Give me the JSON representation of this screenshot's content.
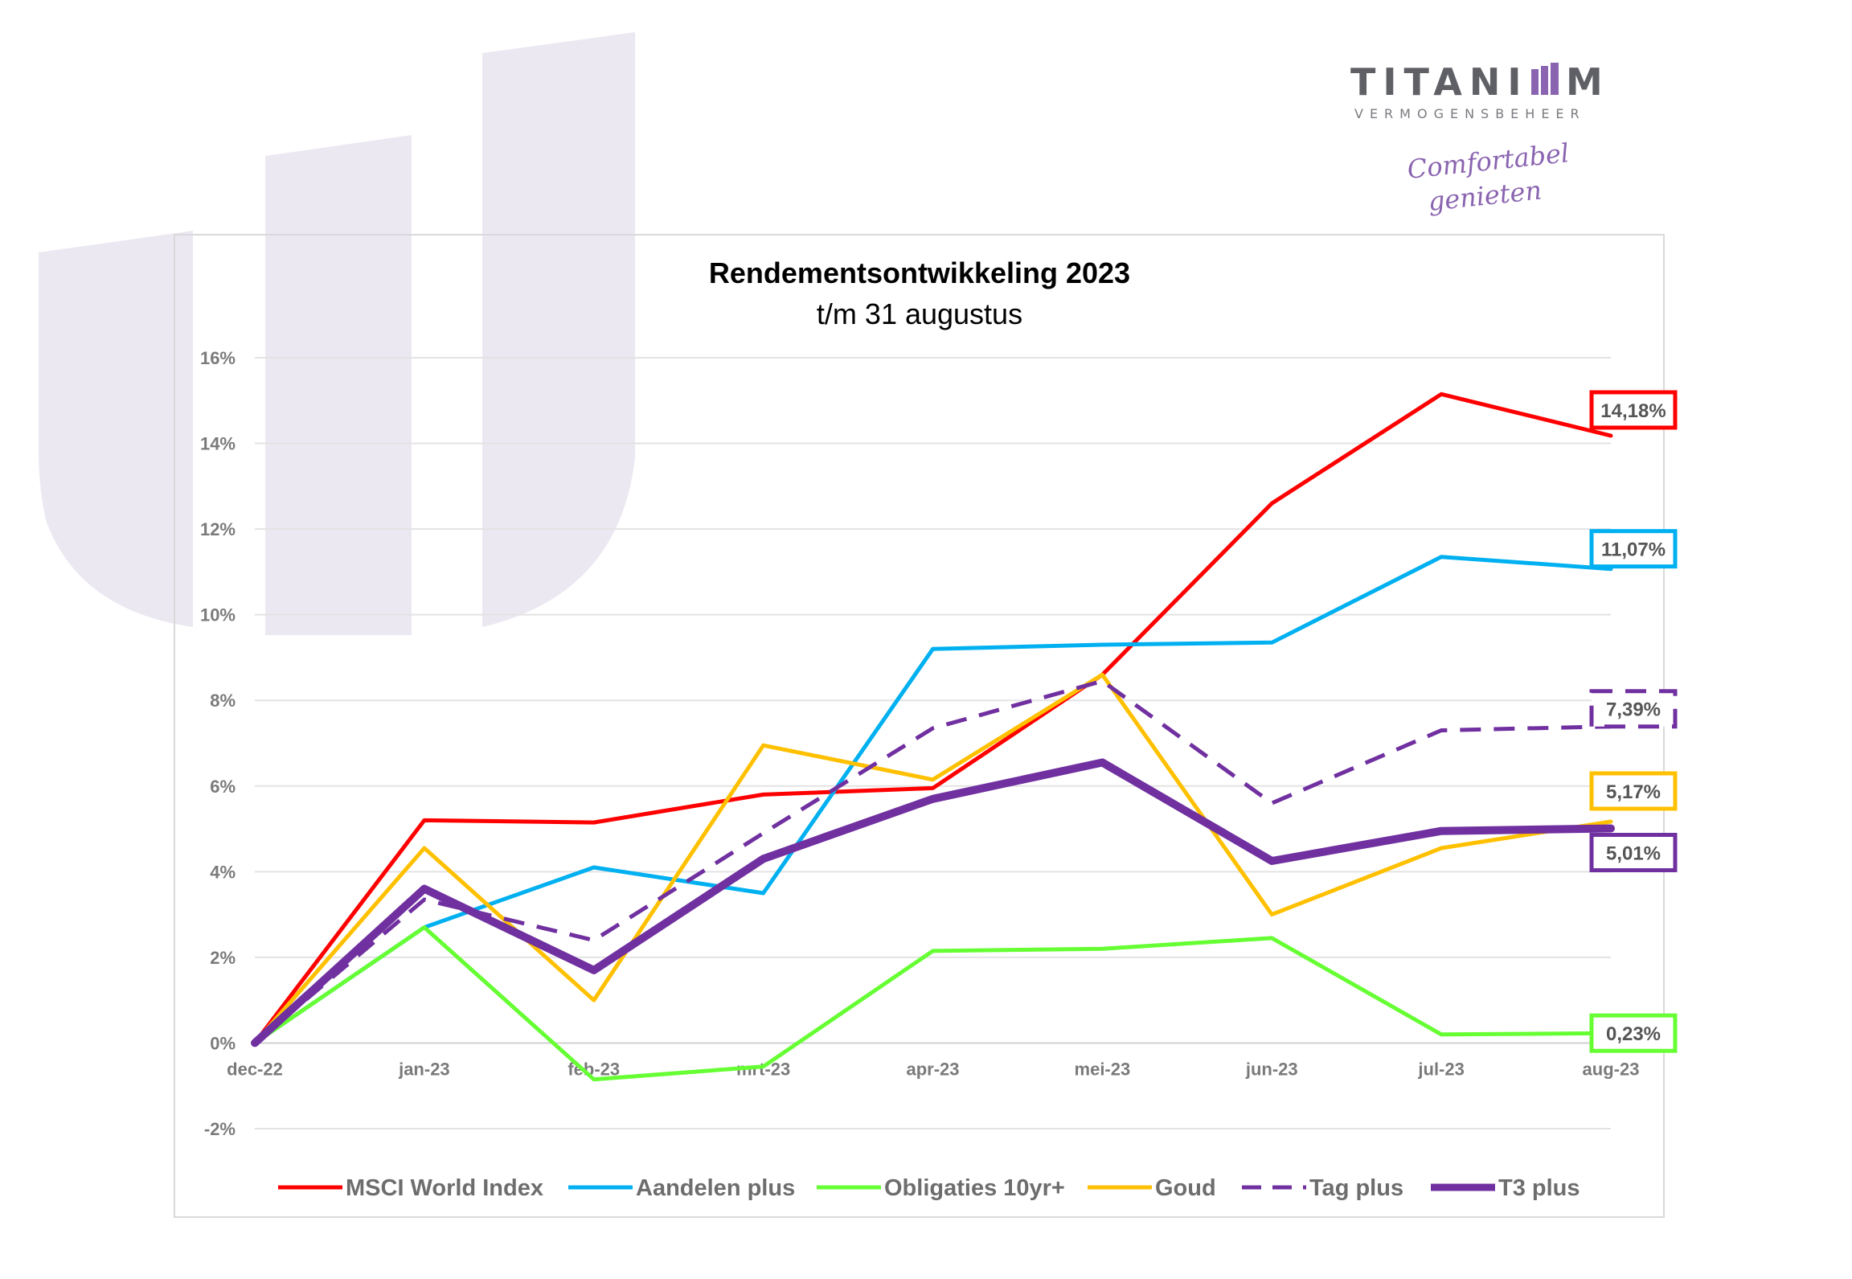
{
  "brand": {
    "name": "TITANIUM",
    "name_part1": "TITANI",
    "name_part2": "M",
    "subtitle": "VERMOGENSBEHEER",
    "slogan_line1": "Comfortabel",
    "slogan_line2": "genieten",
    "accent_color": "#8a64b0",
    "watermark_color": "#ece8f2"
  },
  "chart_data": {
    "type": "line",
    "title": "Rendementsontwikkeling 2023",
    "subtitle": "t/m 31 augustus",
    "categories": [
      "dec-22",
      "jan-23",
      "feb-23",
      "mrt-23",
      "apr-23",
      "mei-23",
      "jun-23",
      "jul-23",
      "aug-23"
    ],
    "y_ticks": [
      -2,
      0,
      2,
      4,
      6,
      8,
      10,
      12,
      14,
      16
    ],
    "y_tick_labels": [
      "-2%",
      "0%",
      "2%",
      "4%",
      "6%",
      "8%",
      "10%",
      "12%",
      "14%",
      "16%"
    ],
    "ylim": [
      -2,
      16
    ],
    "grid": true,
    "legend_position": "bottom",
    "series": [
      {
        "name": "MSCI World Index",
        "color": "#ff0000",
        "style": "solid",
        "width": 5,
        "values": [
          0,
          5.2,
          5.15,
          5.8,
          5.95,
          8.6,
          12.6,
          15.15,
          14.18
        ],
        "end_label": "14,18%"
      },
      {
        "name": "Aandelen plus",
        "color": "#00b0f0",
        "style": "solid",
        "width": 5,
        "values": [
          0,
          2.7,
          4.1,
          3.5,
          9.2,
          9.3,
          9.35,
          11.35,
          11.07
        ],
        "end_label": "11,07%"
      },
      {
        "name": "Obligaties 10yr+",
        "color": "#66ff33",
        "style": "solid",
        "width": 5,
        "values": [
          0,
          2.7,
          -0.85,
          -0.55,
          2.15,
          2.2,
          2.45,
          0.2,
          0.23
        ],
        "end_label": "0,23%"
      },
      {
        "name": "Goud",
        "color": "#ffc000",
        "style": "solid",
        "width": 5,
        "values": [
          0,
          4.55,
          1.0,
          6.95,
          6.15,
          8.6,
          3.0,
          4.55,
          5.17
        ],
        "end_label": "5,17%"
      },
      {
        "name": "Tag plus",
        "color": "#7030a0",
        "style": "dashed",
        "width": 5,
        "values": [
          0,
          3.35,
          2.4,
          4.9,
          7.35,
          8.45,
          5.6,
          7.3,
          7.39
        ],
        "end_label": "7,39%"
      },
      {
        "name": "T3 plus",
        "color": "#7030a0",
        "style": "solid",
        "width": 10,
        "values": [
          0,
          3.6,
          1.7,
          4.3,
          5.7,
          6.55,
          4.25,
          4.95,
          5.01
        ],
        "end_label": "5,01%"
      }
    ]
  }
}
